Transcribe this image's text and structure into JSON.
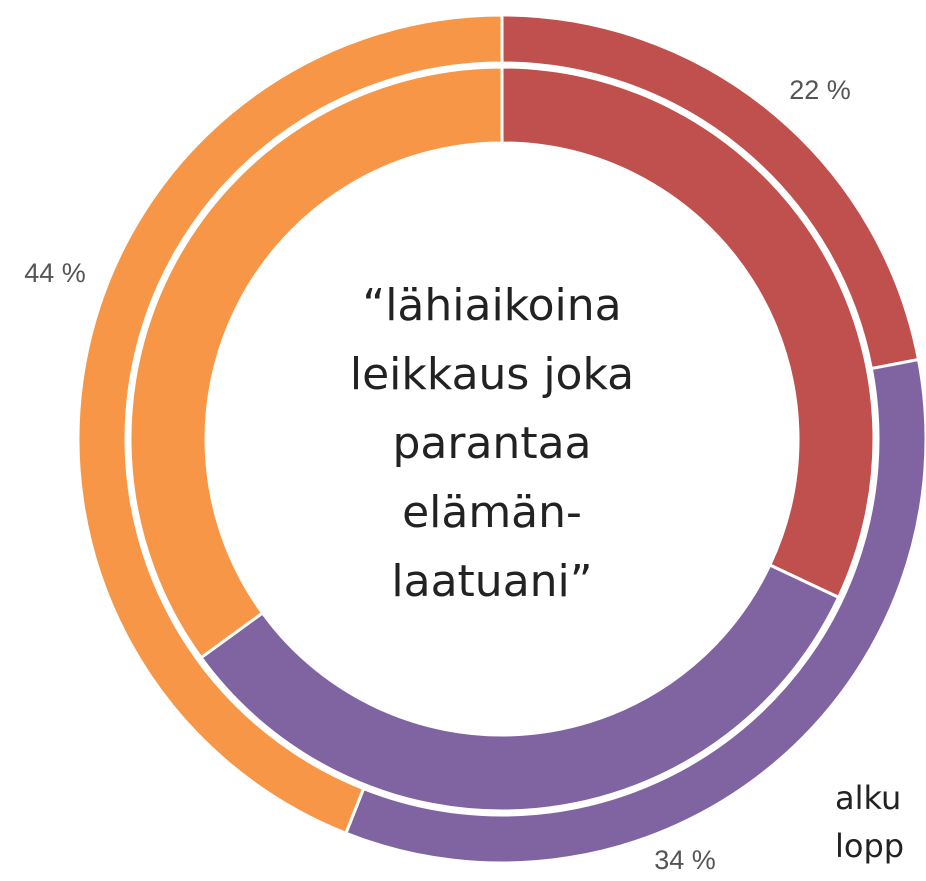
{
  "chart_data": {
    "type": "donut",
    "title": [
      "“lähiaikoina",
      "leikkaus joka",
      "parantaa",
      "elämän-",
      "laatuani”"
    ],
    "colors": [
      "#c0504d",
      "#8064a2",
      "#f79646"
    ],
    "series": [
      {
        "name": "alku",
        "values": [
          22,
          34,
          44
        ],
        "value_labels": [
          "22 %",
          "34 %",
          "44 %"
        ]
      },
      {
        "name": "lopp",
        "values": [
          32,
          33,
          35
        ]
      }
    ]
  }
}
